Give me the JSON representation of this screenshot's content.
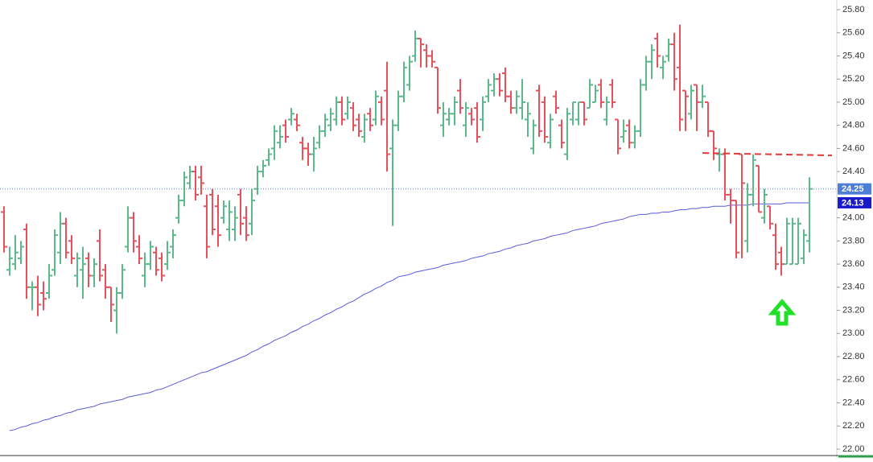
{
  "chart_data": {
    "type": "ohlc",
    "up_color": "#5bb98b",
    "down_color": "#e8505b",
    "ylim": [
      22,
      25.8
    ],
    "yticks": [
      {
        "value": 22,
        "label": "22.00"
      },
      {
        "value": 22.2,
        "label": "22.20"
      },
      {
        "value": 22.4,
        "label": "22.40"
      },
      {
        "value": 22.6,
        "label": "22.60"
      },
      {
        "value": 22.8,
        "label": "22.80"
      },
      {
        "value": 23,
        "label": "23.00"
      },
      {
        "value": 23.2,
        "label": "23.20"
      },
      {
        "value": 23.4,
        "label": "23.40"
      },
      {
        "value": 23.6,
        "label": "23.60"
      },
      {
        "value": 23.8,
        "label": "23.80"
      },
      {
        "value": 24,
        "label": "24.00"
      },
      {
        "value": 24.4,
        "label": "24.40"
      },
      {
        "value": 24.6,
        "label": "24.60"
      },
      {
        "value": 24.8,
        "label": "24.80"
      },
      {
        "value": 25,
        "label": "25.00"
      },
      {
        "value": 25.2,
        "label": "25.20"
      },
      {
        "value": 25.4,
        "label": "25.40"
      },
      {
        "value": 25.6,
        "label": "25.60"
      },
      {
        "value": 25.8,
        "label": "25.80"
      }
    ],
    "values": [
      [
        24.05,
        24.1,
        23.7,
        23.75
      ],
      [
        23.55,
        23.75,
        23.5,
        23.65
      ],
      [
        23.6,
        23.85,
        23.55,
        23.7
      ],
      [
        23.65,
        23.8,
        23.6,
        23.75
      ],
      [
        23.9,
        23.95,
        23.3,
        23.4
      ],
      [
        23.4,
        23.45,
        23.2,
        23.4
      ],
      [
        23.4,
        23.5,
        23.15,
        23.25
      ],
      [
        23.35,
        23.45,
        23.2,
        23.3
      ],
      [
        23.35,
        23.6,
        23.3,
        23.5
      ],
      [
        23.55,
        23.9,
        23.5,
        23.85
      ],
      [
        23.7,
        24.05,
        23.6,
        23.95
      ],
      [
        23.95,
        24.0,
        23.65,
        23.7
      ],
      [
        23.8,
        23.85,
        23.6,
        23.65
      ],
      [
        23.5,
        23.7,
        23.4,
        23.65
      ],
      [
        23.55,
        23.75,
        23.3,
        23.6
      ],
      [
        23.65,
        23.7,
        23.4,
        23.5
      ],
      [
        23.5,
        23.65,
        23.4,
        23.6
      ],
      [
        23.8,
        23.9,
        23.45,
        23.5
      ],
      [
        23.55,
        23.6,
        23.3,
        23.4
      ],
      [
        23.4,
        23.4,
        23.1,
        23.25
      ],
      [
        23.2,
        23.4,
        23.0,
        23.35
      ],
      [
        23.35,
        23.6,
        23.3,
        23.55
      ],
      [
        23.75,
        24.1,
        23.7,
        24.0
      ],
      [
        24.0,
        24.05,
        23.7,
        23.8
      ],
      [
        23.75,
        23.85,
        23.6,
        23.65
      ],
      [
        23.5,
        23.7,
        23.4,
        23.6
      ],
      [
        23.6,
        23.8,
        23.55,
        23.75
      ],
      [
        23.7,
        23.75,
        23.5,
        23.55
      ],
      [
        23.65,
        23.7,
        23.45,
        23.5
      ],
      [
        23.6,
        23.8,
        23.55,
        23.7
      ],
      [
        23.75,
        23.9,
        23.65,
        23.85
      ],
      [
        24.0,
        24.2,
        23.95,
        24.15
      ],
      [
        24.15,
        24.4,
        24.1,
        24.35
      ],
      [
        24.3,
        24.45,
        24.25,
        24.4
      ],
      [
        24.4,
        24.45,
        24.15,
        24.2
      ],
      [
        24.35,
        24.45,
        24.2,
        24.3
      ],
      [
        24.1,
        24.2,
        23.65,
        23.75
      ],
      [
        24.2,
        24.25,
        23.85,
        23.9
      ],
      [
        24.1,
        24.2,
        23.75,
        23.85
      ],
      [
        24.0,
        24.15,
        23.95,
        24.1
      ],
      [
        23.9,
        24.15,
        23.8,
        24.05
      ],
      [
        23.9,
        24.1,
        23.8,
        24.0
      ],
      [
        24.2,
        24.25,
        23.85,
        23.95
      ],
      [
        24.0,
        24.1,
        23.8,
        23.85
      ],
      [
        23.95,
        24.25,
        23.85,
        24.15
      ],
      [
        24.25,
        24.45,
        24.2,
        24.4
      ],
      [
        24.4,
        24.5,
        24.35,
        24.45
      ],
      [
        24.5,
        24.6,
        24.45,
        24.55
      ],
      [
        24.6,
        24.8,
        24.5,
        24.75
      ],
      [
        24.65,
        24.8,
        24.6,
        24.7
      ],
      [
        24.8,
        24.85,
        24.65,
        24.7
      ],
      [
        24.85,
        24.95,
        24.8,
        24.9
      ],
      [
        24.85,
        24.9,
        24.75,
        24.8
      ],
      [
        24.65,
        24.7,
        24.5,
        24.6
      ],
      [
        24.6,
        24.65,
        24.45,
        24.55
      ],
      [
        24.55,
        24.7,
        24.4,
        24.6
      ],
      [
        24.65,
        24.8,
        24.6,
        24.75
      ],
      [
        24.75,
        24.9,
        24.7,
        24.85
      ],
      [
        24.8,
        24.95,
        24.75,
        24.9
      ],
      [
        24.85,
        25.05,
        24.8,
        25.0
      ],
      [
        25.0,
        25.05,
        24.8,
        24.85
      ],
      [
        24.9,
        25.05,
        24.85,
        25.0
      ],
      [
        24.95,
        25.0,
        24.75,
        24.8
      ],
      [
        24.85,
        24.9,
        24.7,
        24.75
      ],
      [
        24.7,
        24.9,
        24.65,
        24.85
      ],
      [
        24.9,
        24.95,
        24.75,
        24.8
      ],
      [
        24.85,
        25.1,
        24.8,
        25.05
      ],
      [
        25.0,
        25.05,
        24.8,
        24.85
      ],
      [
        25.1,
        25.35,
        24.4,
        24.55
      ],
      [
        24.6,
        24.85,
        23.93,
        24.8
      ],
      [
        24.8,
        25.1,
        24.75,
        25.05
      ],
      [
        25.05,
        25.35,
        25.0,
        25.3
      ],
      [
        25.15,
        25.4,
        25.1,
        25.35
      ],
      [
        25.4,
        25.62,
        25.35,
        25.55
      ],
      [
        25.55,
        25.55,
        25.3,
        25.5
      ],
      [
        25.45,
        25.5,
        25.3,
        25.4
      ],
      [
        25.4,
        25.45,
        25.3,
        25.35
      ],
      [
        25.3,
        25.3,
        24.9,
        24.95
      ],
      [
        24.8,
        25.0,
        24.7,
        24.9
      ],
      [
        24.85,
        24.95,
        24.8,
        24.9
      ],
      [
        24.9,
        25.05,
        24.8,
        25.0
      ],
      [
        25.1,
        25.2,
        24.9,
        24.95
      ],
      [
        24.8,
        25.0,
        24.7,
        24.95
      ],
      [
        24.9,
        24.95,
        24.8,
        24.85
      ],
      [
        24.95,
        25.0,
        24.65,
        24.7
      ],
      [
        24.85,
        25.05,
        24.75,
        25.0
      ],
      [
        25.05,
        25.2,
        25.0,
        25.15
      ],
      [
        25.1,
        25.25,
        25.05,
        25.2
      ],
      [
        25.2,
        25.25,
        25.05,
        25.1
      ],
      [
        25.25,
        25.3,
        25.0,
        25.05
      ],
      [
        25.05,
        25.1,
        24.9,
        24.95
      ],
      [
        24.95,
        25.1,
        24.9,
        25.05
      ],
      [
        24.95,
        25.2,
        24.85,
        25.0
      ],
      [
        24.85,
        25.0,
        24.7,
        24.9
      ],
      [
        24.6,
        24.85,
        24.55,
        24.8
      ],
      [
        25.1,
        25.15,
        24.7,
        24.75
      ],
      [
        25.0,
        25.05,
        24.65,
        24.7
      ],
      [
        24.65,
        24.9,
        24.6,
        24.85
      ],
      [
        25.05,
        25.1,
        24.9,
        24.95
      ],
      [
        24.8,
        24.85,
        24.6,
        24.65
      ],
      [
        24.55,
        24.95,
        24.5,
        24.9
      ],
      [
        24.85,
        25.0,
        24.8,
        25.0
      ],
      [
        24.85,
        25.0,
        24.8,
        25.0
      ],
      [
        25.0,
        25.0,
        24.8,
        24.85
      ],
      [
        24.95,
        25.2,
        24.95,
        25.15
      ],
      [
        25.0,
        25.15,
        25.0,
        25.1
      ],
      [
        25.15,
        25.2,
        24.95,
        25.0
      ],
      [
        24.85,
        25.05,
        24.8,
        25.0
      ],
      [
        25.15,
        25.2,
        24.95,
        25.0
      ],
      [
        24.85,
        24.85,
        24.55,
        24.6
      ],
      [
        24.7,
        24.85,
        24.65,
        24.75
      ],
      [
        24.8,
        24.85,
        24.6,
        24.65
      ],
      [
        24.65,
        24.8,
        24.6,
        24.75
      ],
      [
        24.75,
        25.2,
        24.7,
        25.15
      ],
      [
        25.15,
        25.4,
        25.1,
        25.35
      ],
      [
        25.35,
        25.5,
        25.2,
        25.45
      ],
      [
        25.55,
        25.6,
        25.3,
        25.4
      ],
      [
        25.3,
        25.4,
        25.2,
        25.35
      ],
      [
        25.4,
        25.55,
        25.35,
        25.5
      ],
      [
        25.5,
        25.6,
        25.1,
        25.2
      ],
      [
        25.3,
        25.67,
        24.75,
        24.85
      ],
      [
        25.1,
        25.1,
        24.75,
        25.05
      ],
      [
        24.9,
        25.15,
        24.85,
        25.1
      ],
      [
        25.15,
        25.15,
        24.75,
        25.0
      ],
      [
        25.0,
        25.15,
        24.95,
        25.05
      ],
      [
        25.0,
        25.0,
        24.7,
        24.75
      ],
      [
        24.75,
        24.75,
        24.5,
        24.6
      ],
      [
        24.55,
        24.6,
        24.4,
        24.55
      ],
      [
        24.55,
        24.6,
        24.15,
        24.2
      ],
      [
        24.2,
        24.25,
        23.95,
        24.15
      ],
      [
        24.15,
        24.15,
        23.65,
        23.7
      ],
      [
        24.55,
        24.55,
        23.65,
        24.3
      ],
      [
        23.8,
        24.3,
        23.7,
        24.2
      ],
      [
        24.2,
        24.55,
        24.1,
        24.5
      ],
      [
        24.45,
        24.45,
        24.05,
        24.05
      ],
      [
        24.0,
        24.25,
        23.95,
        24.2
      ],
      [
        24.1,
        24.1,
        23.9,
        23.95
      ],
      [
        23.85,
        23.95,
        23.55,
        23.6
      ],
      [
        23.7,
        23.75,
        23.5,
        23.6
      ],
      [
        23.6,
        24.0,
        23.6,
        23.95
      ],
      [
        23.6,
        24.0,
        23.6,
        23.95
      ],
      [
        23.6,
        24.0,
        23.6,
        23.95
      ],
      [
        23.65,
        23.9,
        23.6,
        23.85
      ],
      [
        23.8,
        24.35,
        23.7,
        24.25
      ]
    ],
    "moving_average": {
      "color": "#5b5bd9",
      "values": [
        null,
        22.16,
        22.17,
        22.19,
        22.2,
        22.22,
        22.23,
        22.25,
        22.26,
        22.28,
        22.29,
        22.31,
        22.32,
        22.34,
        22.35,
        22.36,
        22.37,
        22.39,
        22.4,
        22.41,
        22.42,
        22.43,
        22.45,
        22.46,
        22.47,
        22.48,
        22.49,
        22.51,
        22.52,
        22.54,
        22.56,
        22.58,
        22.6,
        22.62,
        22.64,
        22.66,
        22.67,
        22.69,
        22.71,
        22.73,
        22.75,
        22.77,
        22.79,
        22.81,
        22.84,
        22.86,
        22.89,
        22.91,
        22.94,
        22.96,
        22.98,
        23.01,
        23.03,
        23.06,
        23.08,
        23.11,
        23.13,
        23.16,
        23.18,
        23.21,
        23.23,
        23.26,
        23.28,
        23.31,
        23.34,
        23.36,
        23.39,
        23.41,
        23.44,
        23.46,
        23.49,
        23.5,
        23.51,
        23.53,
        23.54,
        23.55,
        23.56,
        23.57,
        23.59,
        23.6,
        23.61,
        23.62,
        23.63,
        23.65,
        23.66,
        23.67,
        23.69,
        23.7,
        23.71,
        23.73,
        23.74,
        23.76,
        23.77,
        23.78,
        23.8,
        23.81,
        23.82,
        23.84,
        23.85,
        23.86,
        23.87,
        23.89,
        23.9,
        23.91,
        23.92,
        23.93,
        23.95,
        23.96,
        23.97,
        23.98,
        23.99,
        24.01,
        24.02,
        24.03,
        24.03,
        24.04,
        24.04,
        24.05,
        24.05,
        24.06,
        24.07,
        24.07,
        24.08,
        24.08,
        24.09,
        24.09,
        24.1,
        24.1,
        24.1,
        24.11,
        24.11,
        24.11,
        24.11,
        24.12,
        24.12,
        24.12,
        24.12,
        24.12,
        24.12,
        24.13,
        24.13,
        24.13,
        24.13,
        24.13
      ]
    },
    "last_price": {
      "value": 24.25,
      "label": "24.25",
      "color": "#4d7fd8"
    },
    "ma_last": {
      "value": 24.13,
      "label": "24.13",
      "color": "#1a1acc"
    },
    "resistance_line": {
      "x": [
        124,
        147
      ],
      "values": [
        24.56,
        24.54
      ],
      "color": "#e53935"
    }
  }
}
